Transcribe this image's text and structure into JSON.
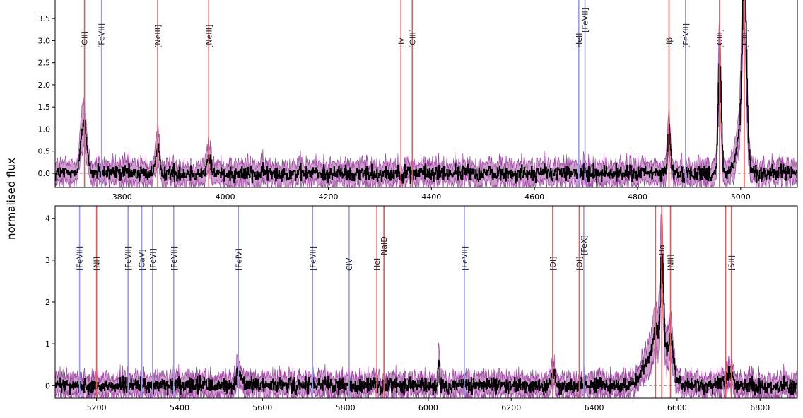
{
  "chart_data": {
    "type": "line",
    "ylabel": "normalised flux",
    "xlabel": "",
    "colors": {
      "emission": "#e8585a",
      "coronal": "#9a9ae8",
      "flux": "#000000",
      "error_band": "#9b3d9e",
      "zero_line": "#888888"
    },
    "panels": [
      {
        "xlim": [
          3670,
          5110
        ],
        "ylim": [
          -0.32,
          3.95
        ],
        "x_ticks": [
          3800,
          4000,
          4200,
          4400,
          4600,
          4800,
          5000
        ],
        "y_ticks": [
          0.0,
          0.5,
          1.0,
          1.5,
          2.0,
          2.5,
          3.0,
          3.5
        ],
        "y_tick_labels": [
          "0.0",
          "0.5",
          "1.0",
          "1.5",
          "2.0",
          "2.5",
          "3.0",
          "3.5"
        ],
        "lines": [
          {
            "name": "[OII]",
            "x": 3727,
            "kind": "emission"
          },
          {
            "name": "[FeVII]",
            "x": 3760,
            "kind": "coronal"
          },
          {
            "name": "[NeIII]",
            "x": 3869,
            "kind": "emission"
          },
          {
            "name": "[NeIII]",
            "x": 3968,
            "kind": "emission"
          },
          {
            "name": "Hγ",
            "x": 4341,
            "kind": "emission"
          },
          {
            "name": "[OIII]",
            "x": 4363,
            "kind": "emission"
          },
          {
            "name": "HeII",
            "x": 4686,
            "kind": "coronal"
          },
          {
            "name": "[FeVII]",
            "x": 4698,
            "kind": "coronal",
            "high": true
          },
          {
            "name": "Hβ",
            "x": 4861,
            "kind": "emission"
          },
          {
            "name": "[FeVII]",
            "x": 4893,
            "kind": "coronal"
          },
          {
            "name": "[OIII]",
            "x": 4959,
            "kind": "emission"
          },
          {
            "name": "[OIII]",
            "x": 5007,
            "kind": "emission"
          }
        ],
        "features": [
          {
            "x": 3725,
            "height": 1.1,
            "width": 6
          },
          {
            "x": 3869,
            "height": 0.55,
            "width": 4
          },
          {
            "x": 3968,
            "height": 0.35,
            "width": 4
          },
          {
            "x": 4861,
            "height": 0.95,
            "width": 3
          },
          {
            "x": 4959,
            "height": 2.6,
            "width": 3
          },
          {
            "x": 5007,
            "height": 3.95,
            "width": 4
          },
          {
            "x": 5000,
            "height": 0.9,
            "width": 9
          }
        ]
      },
      {
        "xlim": [
          5100,
          6890
        ],
        "ylim": [
          -0.3,
          4.3
        ],
        "x_ticks": [
          5200,
          5400,
          5600,
          5800,
          6000,
          6200,
          6400,
          6600,
          6800
        ],
        "y_ticks": [
          0,
          1,
          2,
          3,
          4
        ],
        "y_tick_labels": [
          "0",
          "1",
          "2",
          "3",
          "4"
        ],
        "lines": [
          {
            "name": "[FeVII]",
            "x": 5159,
            "kind": "coronal"
          },
          {
            "name": "[NI]",
            "x": 5200,
            "kind": "emission"
          },
          {
            "name": "[FeVII]",
            "x": 5276,
            "kind": "coronal"
          },
          {
            "name": "[CaV]",
            "x": 5309,
            "kind": "coronal"
          },
          {
            "name": "[FeVI]",
            "x": 5335,
            "kind": "coronal"
          },
          {
            "name": "[FeVII]",
            "x": 5386,
            "kind": "coronal"
          },
          {
            "name": "[FeIV]",
            "x": 5542,
            "kind": "coronal"
          },
          {
            "name": "[FeVII]",
            "x": 5721,
            "kind": "coronal"
          },
          {
            "name": "CIV",
            "x": 5809,
            "kind": "coronal"
          },
          {
            "name": "HeI",
            "x": 5876,
            "kind": "emission"
          },
          {
            "name": "NaID",
            "x": 5893,
            "kind": "emission",
            "high": true
          },
          {
            "name": "[FeVII]",
            "x": 6087,
            "kind": "coronal"
          },
          {
            "name": "[OI]",
            "x": 6300,
            "kind": "emission"
          },
          {
            "name": "[OI]",
            "x": 6364,
            "kind": "emission"
          },
          {
            "name": "[FeX]",
            "x": 6375,
            "kind": "coronal",
            "high": true
          },
          {
            "name": "",
            "x": 6548,
            "kind": "emission"
          },
          {
            "name": "Hα",
            "x": 6563,
            "kind": "emission",
            "high": true
          },
          {
            "name": "[NII]",
            "x": 6584,
            "kind": "emission"
          },
          {
            "name": "",
            "x": 6717,
            "kind": "emission"
          },
          {
            "name": "[SII]",
            "x": 6731,
            "kind": "emission"
          }
        ],
        "features": [
          {
            "x": 6563,
            "height": 2.4,
            "width": 4
          },
          {
            "x": 6550,
            "height": 0.9,
            "width": 25
          },
          {
            "x": 6584,
            "height": 0.8,
            "width": 6
          },
          {
            "x": 6548,
            "height": 0.5,
            "width": 4
          },
          {
            "x": 6025,
            "height": 0.75,
            "width": 1.5
          },
          {
            "x": 6300,
            "height": 0.3,
            "width": 5
          },
          {
            "x": 6725,
            "height": 0.3,
            "width": 8
          },
          {
            "x": 5542,
            "height": 0.3,
            "width": 6
          }
        ]
      }
    ]
  }
}
